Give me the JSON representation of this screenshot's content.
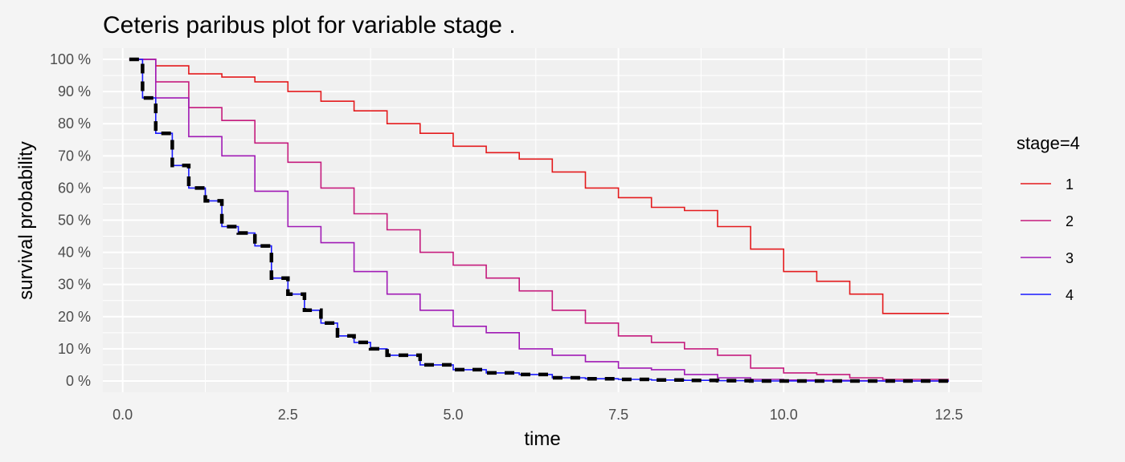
{
  "chart_data": {
    "type": "line",
    "title": "Ceteris paribus plot for variable stage .",
    "xlabel": "time",
    "ylabel": "survival probability",
    "xlim": [
      -0.3,
      13.0
    ],
    "ylim": [
      -0.035,
      1.035
    ],
    "x_ticks": [
      0.0,
      2.5,
      5.0,
      7.5,
      10.0,
      12.5
    ],
    "x_tick_labels": [
      "0.0",
      "2.5",
      "5.0",
      "7.5",
      "10.0",
      "12.5"
    ],
    "y_ticks": [
      0,
      0.1,
      0.2,
      0.3,
      0.4,
      0.5,
      0.6,
      0.7,
      0.8,
      0.9,
      1.0
    ],
    "y_tick_labels": [
      "0 %",
      "10 %",
      "20 %",
      "30 %",
      "40 %",
      "50 %",
      "60 %",
      "70 %",
      "80 %",
      "90 %",
      "100 %"
    ],
    "grid": true,
    "legend": {
      "title": "stage=4",
      "position": "right"
    },
    "series": [
      {
        "name": "1",
        "color": "#e41a1c",
        "line_style": "solid",
        "x": [
          0.1,
          0.5,
          1.0,
          1.5,
          2.0,
          2.5,
          3.0,
          3.5,
          4.0,
          4.5,
          5.0,
          5.5,
          6.0,
          6.5,
          7.0,
          7.5,
          8.0,
          8.5,
          9.0,
          9.5,
          10.0,
          10.5,
          11.0,
          11.5,
          12.0,
          12.5
        ],
        "y": [
          1.0,
          0.98,
          0.955,
          0.945,
          0.93,
          0.9,
          0.87,
          0.84,
          0.8,
          0.77,
          0.73,
          0.71,
          0.69,
          0.65,
          0.6,
          0.57,
          0.54,
          0.53,
          0.48,
          0.41,
          0.34,
          0.31,
          0.27,
          0.21,
          0.21,
          0.21
        ]
      },
      {
        "name": "2",
        "color": "#c51b7d",
        "line_style": "solid",
        "x": [
          0.1,
          0.5,
          1.0,
          1.5,
          2.0,
          2.5,
          3.0,
          3.5,
          4.0,
          4.5,
          5.0,
          5.5,
          6.0,
          6.5,
          7.0,
          7.5,
          8.0,
          8.5,
          9.0,
          9.5,
          10.0,
          10.5,
          11.0,
          11.5,
          12.0,
          12.5
        ],
        "y": [
          1.0,
          0.93,
          0.85,
          0.81,
          0.74,
          0.68,
          0.6,
          0.52,
          0.47,
          0.4,
          0.36,
          0.32,
          0.28,
          0.22,
          0.18,
          0.14,
          0.12,
          0.1,
          0.08,
          0.04,
          0.025,
          0.02,
          0.01,
          0.005,
          0.005,
          0.005
        ]
      },
      {
        "name": "3",
        "color": "#a01ab5",
        "line_style": "solid",
        "x": [
          0.1,
          0.5,
          1.0,
          1.5,
          2.0,
          2.5,
          3.0,
          3.5,
          4.0,
          4.5,
          5.0,
          5.5,
          6.0,
          6.5,
          7.0,
          7.5,
          8.0,
          8.5,
          9.0,
          9.5,
          10.0,
          10.5,
          11.0,
          11.5,
          12.0,
          12.5
        ],
        "y": [
          1.0,
          0.88,
          0.76,
          0.7,
          0.59,
          0.48,
          0.43,
          0.34,
          0.27,
          0.22,
          0.17,
          0.15,
          0.1,
          0.08,
          0.06,
          0.04,
          0.035,
          0.02,
          0.01,
          0.005,
          0.003,
          0.002,
          0.001,
          0.0,
          0.0,
          0.0
        ]
      },
      {
        "name": "4",
        "color": "#1a1aff",
        "line_style": "solid",
        "x": [
          0.1,
          0.3,
          0.5,
          0.75,
          1.0,
          1.25,
          1.5,
          1.75,
          2.0,
          2.25,
          2.5,
          2.75,
          3.0,
          3.25,
          3.5,
          3.75,
          4.0,
          4.5,
          5.0,
          5.5,
          6.0,
          6.5,
          7.0,
          7.5,
          8.0,
          8.5,
          9.0,
          9.5,
          10.0,
          11.0,
          12.0,
          12.5
        ],
        "y": [
          1.0,
          0.88,
          0.77,
          0.67,
          0.6,
          0.56,
          0.48,
          0.46,
          0.42,
          0.32,
          0.27,
          0.22,
          0.18,
          0.14,
          0.12,
          0.1,
          0.08,
          0.05,
          0.035,
          0.025,
          0.02,
          0.01,
          0.007,
          0.005,
          0.003,
          0.002,
          0.001,
          0.0,
          0.0,
          0.0,
          0.0,
          0.0
        ]
      },
      {
        "name": "",
        "color": "#000000",
        "line_style": "dashed",
        "x": [
          0.1,
          0.3,
          0.5,
          0.75,
          1.0,
          1.25,
          1.5,
          1.75,
          2.0,
          2.25,
          2.5,
          2.75,
          3.0,
          3.25,
          3.5,
          3.75,
          4.0,
          4.5,
          5.0,
          5.5,
          6.0,
          6.5,
          7.0,
          7.5,
          8.0,
          8.5,
          9.0,
          9.5,
          10.0,
          11.0,
          12.0,
          12.5
        ],
        "y": [
          1.0,
          0.88,
          0.77,
          0.67,
          0.6,
          0.56,
          0.48,
          0.46,
          0.42,
          0.32,
          0.27,
          0.22,
          0.18,
          0.14,
          0.12,
          0.1,
          0.08,
          0.05,
          0.035,
          0.025,
          0.02,
          0.01,
          0.007,
          0.005,
          0.003,
          0.002,
          0.001,
          0.0,
          0.0,
          0.0,
          0.0,
          0.0
        ]
      }
    ]
  }
}
